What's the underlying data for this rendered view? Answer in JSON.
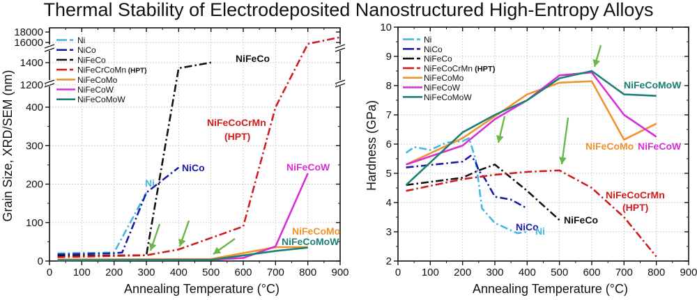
{
  "title": "Thermal Stability of Electrodeposited Nanostructured High-Entropy Alloys",
  "colors": {
    "Ni": "#45b6e0",
    "NiCo": "#1a1aa6",
    "NiFeCo": "#111111",
    "NiFeCrCoMn": "#d01c1c",
    "NiFeCoMo": "#f0922e",
    "NiFeCoW": "#d62fd6",
    "NiFeCoMoW": "#1c7f74",
    "arrow": "#6ab64a",
    "grid": "#cfcfcf"
  },
  "chart_data": [
    {
      "type": "line",
      "title": "",
      "xlabel": "Annealing Temperature (°C)",
      "ylabel": "Grain Size, XRD/SEM (nm)",
      "xlim": [
        0,
        900
      ],
      "xticks": [
        "0",
        "100",
        "200",
        "300",
        "400",
        "500",
        "600",
        "700",
        "800",
        "900"
      ],
      "ylim_segments": [
        [
          0,
          400
        ],
        [
          1200,
          1400
        ],
        [
          16000,
          18000
        ]
      ],
      "yticks": [
        "0",
        "100",
        "200",
        "300",
        "400",
        "1200",
        "1400",
        "16000",
        "18000"
      ],
      "axis_breaks": [
        400,
        1200
      ],
      "grid": true,
      "legend_position": "top-left",
      "series": [
        {
          "name": "Ni",
          "style": "dash-dot",
          "x": [
            25,
            200,
            300
          ],
          "y": [
            20,
            22,
            178
          ]
        },
        {
          "name": "NiCo",
          "style": "dash-dot",
          "x": [
            25,
            200,
            225,
            300,
            400
          ],
          "y": [
            17,
            20,
            22,
            178,
            243
          ]
        },
        {
          "name": "NiFeCo",
          "style": "dash-dot",
          "x": [
            25,
            300,
            400,
            500
          ],
          "y": [
            13,
            15,
            1350,
            1440
          ]
        },
        {
          "name": "NiFeCrCoMn (HPT)",
          "style": "dash-dot",
          "x": [
            25,
            300,
            400,
            600,
            700,
            800,
            900
          ],
          "y": [
            10,
            15,
            30,
            90,
            400,
            15000,
            17000
          ]
        },
        {
          "name": "NiFeCoMo",
          "style": "solid",
          "x": [
            25,
            500,
            700,
            800
          ],
          "y": [
            4,
            5,
            36,
            36
          ]
        },
        {
          "name": "NiFeCoW",
          "style": "solid",
          "x": [
            25,
            500,
            600,
            700,
            800
          ],
          "y": [
            2,
            3,
            8,
            38,
            228
          ]
        },
        {
          "name": "NiFeCoMoW",
          "style": "solid",
          "x": [
            25,
            500,
            700,
            800
          ],
          "y": [
            2,
            3,
            26,
            35
          ]
        }
      ],
      "annotations": [
        {
          "text": "NiFeCo",
          "series": "NiFeCo"
        },
        {
          "text": "NiFeCoCrMn",
          "series": "NiFeCrCoMn (HPT)"
        },
        {
          "text": "(HPT)",
          "series": "NiFeCrCoMn (HPT)"
        },
        {
          "text": "NiFeCoW",
          "series": "NiFeCoW"
        },
        {
          "text": "NiFeCoMo",
          "series": "NiFeCoMo"
        },
        {
          "text": "NiFeCoMoW",
          "series": "NiFeCoMoW"
        },
        {
          "text": "Ni",
          "series": "Ni"
        },
        {
          "text": "NiCo",
          "series": "NiCo"
        }
      ],
      "arrows_at": [
        [
          310,
          22
        ],
        [
          400,
          30
        ],
        [
          500,
          5
        ]
      ]
    },
    {
      "type": "line",
      "title": "",
      "xlabel": "Annealing Temperature (°C)",
      "ylabel": "Hardness (GPa)",
      "xlim": [
        0,
        900
      ],
      "ylim": [
        2,
        10
      ],
      "xticks": [
        "0",
        "100",
        "200",
        "300",
        "400",
        "500",
        "600",
        "700",
        "800",
        "900"
      ],
      "yticks": [
        "2",
        "3",
        "4",
        "5",
        "6",
        "7",
        "8",
        "9",
        "10"
      ],
      "grid": true,
      "legend_position": "top-left",
      "series": [
        {
          "name": "Ni",
          "style": "dash-dot",
          "x": [
            25,
            50,
            100,
            150,
            200,
            220,
            240,
            260,
            300,
            370,
            400
          ],
          "y": [
            5.7,
            5.9,
            5.8,
            6.05,
            6.1,
            6.2,
            5.5,
            3.8,
            3.3,
            2.95,
            3.0
          ]
        },
        {
          "name": "NiCo",
          "style": "dash-dot",
          "x": [
            25,
            200,
            225,
            240,
            250,
            270,
            300,
            350,
            400
          ],
          "y": [
            5.2,
            5.4,
            5.6,
            5.4,
            5.1,
            4.8,
            4.2,
            4.1,
            3.8
          ]
        },
        {
          "name": "NiFeCo",
          "style": "dash-dot",
          "x": [
            25,
            200,
            250,
            300,
            400,
            500
          ],
          "y": [
            4.6,
            4.85,
            5.1,
            5.3,
            4.4,
            3.4
          ]
        },
        {
          "name": "NiFeCoCrMn (HPT)",
          "style": "dash-dot",
          "x": [
            25,
            200,
            300,
            400,
            500,
            600,
            700,
            800
          ],
          "y": [
            4.4,
            4.8,
            4.95,
            5.05,
            5.1,
            4.5,
            3.5,
            2.15
          ]
        },
        {
          "name": "NiFeCoMo",
          "style": "solid",
          "x": [
            25,
            200,
            400,
            500,
            600,
            700,
            800
          ],
          "y": [
            5.3,
            6.2,
            7.7,
            8.1,
            8.15,
            6.15,
            6.7
          ]
        },
        {
          "name": "NiFeCoW",
          "style": "solid",
          "x": [
            25,
            200,
            300,
            400,
            500,
            600,
            700,
            800
          ],
          "y": [
            5.3,
            5.95,
            6.85,
            7.5,
            8.35,
            8.45,
            7.0,
            6.25
          ]
        },
        {
          "name": "NiFeCoMoW",
          "style": "solid",
          "x": [
            25,
            200,
            300,
            400,
            500,
            600,
            700,
            800
          ],
          "y": [
            4.6,
            6.4,
            7.0,
            7.5,
            8.25,
            8.5,
            7.7,
            7.65
          ]
        }
      ],
      "annotations": [
        {
          "text": "NiFeCoMoW",
          "series": "NiFeCoMoW"
        },
        {
          "text": "NiFeCoMo",
          "series": "NiFeCoMo"
        },
        {
          "text": "NiFeCoW",
          "series": "NiFeCoW"
        },
        {
          "text": "NiFeCoCrMn",
          "series": "NiFeCrCoMn (HPT)"
        },
        {
          "text": "(HPT)",
          "series": "NiFeCrCoMn (HPT)"
        },
        {
          "text": "NiFeCo",
          "series": "NiFeCo"
        },
        {
          "text": "NiCo",
          "series": "NiCo"
        },
        {
          "text": "Ni",
          "series": "Ni"
        }
      ],
      "arrows_at": [
        [
          300,
          5.35
        ],
        [
          500,
          5.1
        ],
        [
          600,
          8.5
        ]
      ]
    }
  ],
  "legend": {
    "left": [
      "Ni",
      "NiCo",
      "NiFeCo",
      "NiFeCrCoMn",
      "NiFeCoMo",
      "NiFeCoW",
      "NiFeCoMoW"
    ],
    "left_suffix": "(HPT)",
    "right": [
      "Ni",
      "NiCo",
      "NiFeCo",
      "NiFeCoCrMn",
      "NiFeCoMo",
      "NiFeCoW",
      "NiFeCoMoW"
    ],
    "right_suffix": "(HPT)"
  }
}
